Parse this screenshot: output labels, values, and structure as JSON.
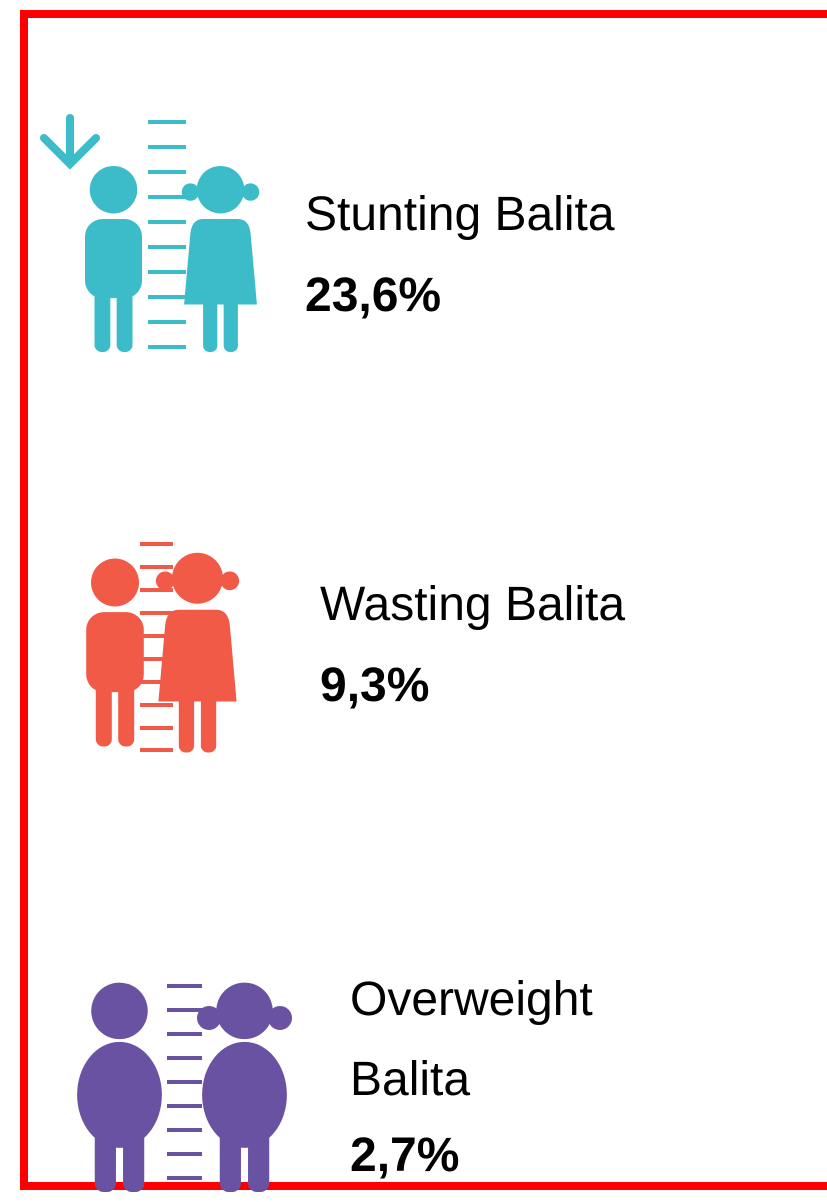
{
  "items": [
    {
      "label": "Stunting Balita",
      "value": "23,6%"
    },
    {
      "label": "Wasting Balita",
      "value": "9,3%"
    },
    {
      "label": "Overweight Balita",
      "value": "2,7%"
    }
  ]
}
